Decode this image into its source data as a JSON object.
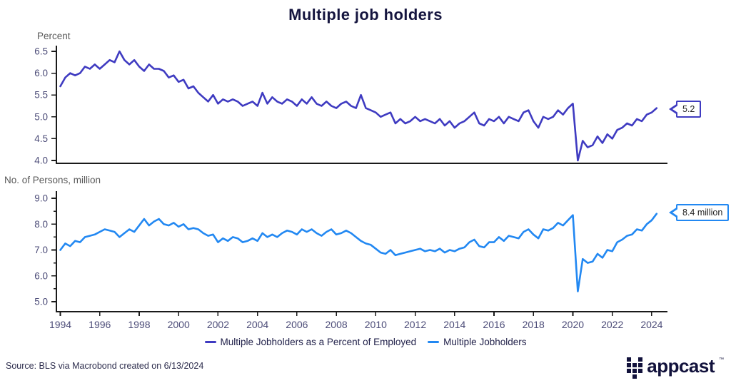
{
  "title": "Multiple job holders",
  "source": "Source: BLS via Macrobond created on 6/13/2024",
  "colors": {
    "percent_line": "#3f3bc1",
    "persons_line": "#2288f2",
    "axis": "#1a1a1a",
    "tick_text": "#4c4c78",
    "title_text": "#15153f",
    "unit_text": "#595959"
  },
  "legend": [
    {
      "label": "Multiple Jobholders as a Percent of Employed"
    },
    {
      "label": "Multiple Jobholders"
    }
  ],
  "logo": {
    "icon": "appcast-grid-icon",
    "text": "appcast",
    "tm": "™"
  },
  "chart_data": [
    {
      "type": "line",
      "name": "Multiple Jobholders as a Percent of Employed",
      "unit_label": "Percent",
      "ylim": [
        4.0,
        6.5
      ],
      "y_ticks": [
        {
          "v": 6.5,
          "label": "6.5"
        },
        {
          "v": 6.0,
          "label": "6.0"
        },
        {
          "v": 5.5,
          "label": "5.5"
        },
        {
          "v": 5.0,
          "label": "5.0"
        },
        {
          "v": 4.5,
          "label": "4.5"
        },
        {
          "v": 4.0,
          "label": "4.0"
        }
      ],
      "y_minor_ticks": [],
      "x_ticks": [],
      "xlim": [
        1994,
        2024.25
      ],
      "end_label": "5.2",
      "grid": false,
      "points": [
        [
          1994,
          5.7
        ],
        [
          1994.25,
          5.9
        ],
        [
          1994.5,
          6.0
        ],
        [
          1994.75,
          5.95
        ],
        [
          1995,
          6.0
        ],
        [
          1995.25,
          6.15
        ],
        [
          1995.5,
          6.1
        ],
        [
          1995.75,
          6.2
        ],
        [
          1996,
          6.1
        ],
        [
          1996.25,
          6.2
        ],
        [
          1996.5,
          6.3
        ],
        [
          1996.75,
          6.25
        ],
        [
          1997,
          6.5
        ],
        [
          1997.25,
          6.3
        ],
        [
          1997.5,
          6.2
        ],
        [
          1997.75,
          6.3
        ],
        [
          1998,
          6.15
        ],
        [
          1998.25,
          6.05
        ],
        [
          1998.5,
          6.2
        ],
        [
          1998.75,
          6.1
        ],
        [
          1999,
          6.1
        ],
        [
          1999.25,
          6.05
        ],
        [
          1999.5,
          5.9
        ],
        [
          1999.75,
          5.95
        ],
        [
          2000,
          5.8
        ],
        [
          2000.25,
          5.85
        ],
        [
          2000.5,
          5.65
        ],
        [
          2000.75,
          5.7
        ],
        [
          2001,
          5.55
        ],
        [
          2001.25,
          5.45
        ],
        [
          2001.5,
          5.35
        ],
        [
          2001.75,
          5.5
        ],
        [
          2002,
          5.3
        ],
        [
          2002.25,
          5.4
        ],
        [
          2002.5,
          5.35
        ],
        [
          2002.75,
          5.4
        ],
        [
          2003,
          5.35
        ],
        [
          2003.25,
          5.25
        ],
        [
          2003.5,
          5.3
        ],
        [
          2003.75,
          5.35
        ],
        [
          2004,
          5.25
        ],
        [
          2004.25,
          5.55
        ],
        [
          2004.5,
          5.3
        ],
        [
          2004.75,
          5.45
        ],
        [
          2005,
          5.35
        ],
        [
          2005.25,
          5.3
        ],
        [
          2005.5,
          5.4
        ],
        [
          2005.75,
          5.35
        ],
        [
          2006,
          5.25
        ],
        [
          2006.25,
          5.4
        ],
        [
          2006.5,
          5.3
        ],
        [
          2006.75,
          5.45
        ],
        [
          2007,
          5.3
        ],
        [
          2007.25,
          5.25
        ],
        [
          2007.5,
          5.35
        ],
        [
          2007.75,
          5.25
        ],
        [
          2008,
          5.2
        ],
        [
          2008.25,
          5.3
        ],
        [
          2008.5,
          5.35
        ],
        [
          2008.75,
          5.25
        ],
        [
          2009,
          5.2
        ],
        [
          2009.25,
          5.5
        ],
        [
          2009.5,
          5.2
        ],
        [
          2009.75,
          5.15
        ],
        [
          2010,
          5.1
        ],
        [
          2010.25,
          5.0
        ],
        [
          2010.5,
          5.05
        ],
        [
          2010.75,
          5.1
        ],
        [
          2011,
          4.85
        ],
        [
          2011.25,
          4.95
        ],
        [
          2011.5,
          4.85
        ],
        [
          2011.75,
          4.9
        ],
        [
          2012,
          5.0
        ],
        [
          2012.25,
          4.9
        ],
        [
          2012.5,
          4.95
        ],
        [
          2012.75,
          4.9
        ],
        [
          2013,
          4.85
        ],
        [
          2013.25,
          4.95
        ],
        [
          2013.5,
          4.8
        ],
        [
          2013.75,
          4.9
        ],
        [
          2014,
          4.75
        ],
        [
          2014.25,
          4.85
        ],
        [
          2014.5,
          4.9
        ],
        [
          2014.75,
          5.0
        ],
        [
          2015,
          5.1
        ],
        [
          2015.25,
          4.85
        ],
        [
          2015.5,
          4.8
        ],
        [
          2015.75,
          4.95
        ],
        [
          2016,
          4.9
        ],
        [
          2016.25,
          5.0
        ],
        [
          2016.5,
          4.85
        ],
        [
          2016.75,
          5.0
        ],
        [
          2017,
          4.95
        ],
        [
          2017.25,
          4.9
        ],
        [
          2017.5,
          5.1
        ],
        [
          2017.75,
          5.15
        ],
        [
          2018,
          4.9
        ],
        [
          2018.25,
          4.75
        ],
        [
          2018.5,
          5.0
        ],
        [
          2018.75,
          4.95
        ],
        [
          2019,
          5.0
        ],
        [
          2019.25,
          5.15
        ],
        [
          2019.5,
          5.05
        ],
        [
          2019.75,
          5.2
        ],
        [
          2020,
          5.3
        ],
        [
          2020.25,
          4.0
        ],
        [
          2020.5,
          4.45
        ],
        [
          2020.75,
          4.3
        ],
        [
          2021,
          4.35
        ],
        [
          2021.25,
          4.55
        ],
        [
          2021.5,
          4.4
        ],
        [
          2021.75,
          4.6
        ],
        [
          2022,
          4.5
        ],
        [
          2022.25,
          4.7
        ],
        [
          2022.5,
          4.75
        ],
        [
          2022.75,
          4.85
        ],
        [
          2023,
          4.8
        ],
        [
          2023.25,
          4.95
        ],
        [
          2023.5,
          4.9
        ],
        [
          2023.75,
          5.05
        ],
        [
          2024,
          5.1
        ],
        [
          2024.25,
          5.2
        ]
      ]
    },
    {
      "type": "line",
      "name": "Multiple Jobholders",
      "unit_label": "No. of Persons, million",
      "ylim": [
        5.0,
        9.0
      ],
      "y_ticks": [
        {
          "v": 9.0,
          "label": "9.0"
        },
        {
          "v": 8.0,
          "label": "8.0"
        },
        {
          "v": 7.0,
          "label": "7.0"
        },
        {
          "v": 6.0,
          "label": "6.0"
        },
        {
          "v": 5.0,
          "label": "5.0"
        }
      ],
      "y_minor_ticks": [
        8.5,
        7.5,
        6.5,
        5.5
      ],
      "x_ticks": [
        {
          "v": 1994,
          "label": "1994"
        },
        {
          "v": 1996,
          "label": "1996"
        },
        {
          "v": 1998,
          "label": "1998"
        },
        {
          "v": 2000,
          "label": "2000"
        },
        {
          "v": 2002,
          "label": "2002"
        },
        {
          "v": 2004,
          "label": "2004"
        },
        {
          "v": 2006,
          "label": "2006"
        },
        {
          "v": 2008,
          "label": "2008"
        },
        {
          "v": 2010,
          "label": "2010"
        },
        {
          "v": 2012,
          "label": "2012"
        },
        {
          "v": 2014,
          "label": "2014"
        },
        {
          "v": 2016,
          "label": "2016"
        },
        {
          "v": 2018,
          "label": "2018"
        },
        {
          "v": 2020,
          "label": "2020"
        },
        {
          "v": 2022,
          "label": "2022"
        },
        {
          "v": 2024,
          "label": "2024"
        }
      ],
      "xlim": [
        1994,
        2024.25
      ],
      "end_label": "8.4 million",
      "grid": false,
      "points": [
        [
          1994,
          7.0
        ],
        [
          1994.25,
          7.25
        ],
        [
          1994.5,
          7.15
        ],
        [
          1994.75,
          7.35
        ],
        [
          1995,
          7.3
        ],
        [
          1995.25,
          7.5
        ],
        [
          1995.5,
          7.55
        ],
        [
          1995.75,
          7.6
        ],
        [
          1996,
          7.7
        ],
        [
          1996.25,
          7.8
        ],
        [
          1996.5,
          7.75
        ],
        [
          1996.75,
          7.7
        ],
        [
          1997,
          7.5
        ],
        [
          1997.25,
          7.65
        ],
        [
          1997.5,
          7.8
        ],
        [
          1997.75,
          7.7
        ],
        [
          1998,
          7.95
        ],
        [
          1998.25,
          8.2
        ],
        [
          1998.5,
          7.95
        ],
        [
          1998.75,
          8.1
        ],
        [
          1999,
          8.2
        ],
        [
          1999.25,
          8.0
        ],
        [
          1999.5,
          7.95
        ],
        [
          1999.75,
          8.05
        ],
        [
          2000,
          7.9
        ],
        [
          2000.25,
          8.0
        ],
        [
          2000.5,
          7.8
        ],
        [
          2000.75,
          7.85
        ],
        [
          2001,
          7.8
        ],
        [
          2001.25,
          7.65
        ],
        [
          2001.5,
          7.55
        ],
        [
          2001.75,
          7.6
        ],
        [
          2002,
          7.3
        ],
        [
          2002.25,
          7.45
        ],
        [
          2002.5,
          7.35
        ],
        [
          2002.75,
          7.5
        ],
        [
          2003,
          7.45
        ],
        [
          2003.25,
          7.3
        ],
        [
          2003.5,
          7.35
        ],
        [
          2003.75,
          7.45
        ],
        [
          2004,
          7.35
        ],
        [
          2004.25,
          7.65
        ],
        [
          2004.5,
          7.5
        ],
        [
          2004.75,
          7.6
        ],
        [
          2005,
          7.5
        ],
        [
          2005.25,
          7.65
        ],
        [
          2005.5,
          7.75
        ],
        [
          2005.75,
          7.7
        ],
        [
          2006,
          7.6
        ],
        [
          2006.25,
          7.8
        ],
        [
          2006.5,
          7.7
        ],
        [
          2006.75,
          7.8
        ],
        [
          2007,
          7.65
        ],
        [
          2007.25,
          7.55
        ],
        [
          2007.5,
          7.7
        ],
        [
          2007.75,
          7.8
        ],
        [
          2008,
          7.6
        ],
        [
          2008.25,
          7.65
        ],
        [
          2008.5,
          7.75
        ],
        [
          2008.75,
          7.65
        ],
        [
          2009,
          7.5
        ],
        [
          2009.25,
          7.35
        ],
        [
          2009.5,
          7.25
        ],
        [
          2009.75,
          7.2
        ],
        [
          2010,
          7.05
        ],
        [
          2010.25,
          6.9
        ],
        [
          2010.5,
          6.85
        ],
        [
          2010.75,
          7.0
        ],
        [
          2011,
          6.8
        ],
        [
          2011.25,
          6.85
        ],
        [
          2011.5,
          6.9
        ],
        [
          2011.75,
          6.95
        ],
        [
          2012,
          7.0
        ],
        [
          2012.25,
          7.05
        ],
        [
          2012.5,
          6.95
        ],
        [
          2012.75,
          7.0
        ],
        [
          2013,
          6.95
        ],
        [
          2013.25,
          7.05
        ],
        [
          2013.5,
          6.9
        ],
        [
          2013.75,
          7.0
        ],
        [
          2014,
          6.95
        ],
        [
          2014.25,
          7.05
        ],
        [
          2014.5,
          7.1
        ],
        [
          2014.75,
          7.3
        ],
        [
          2015,
          7.4
        ],
        [
          2015.25,
          7.15
        ],
        [
          2015.5,
          7.1
        ],
        [
          2015.75,
          7.3
        ],
        [
          2016,
          7.3
        ],
        [
          2016.25,
          7.5
        ],
        [
          2016.5,
          7.35
        ],
        [
          2016.75,
          7.55
        ],
        [
          2017,
          7.5
        ],
        [
          2017.25,
          7.45
        ],
        [
          2017.5,
          7.7
        ],
        [
          2017.75,
          7.8
        ],
        [
          2018,
          7.6
        ],
        [
          2018.25,
          7.45
        ],
        [
          2018.5,
          7.8
        ],
        [
          2018.75,
          7.75
        ],
        [
          2019,
          7.85
        ],
        [
          2019.25,
          8.05
        ],
        [
          2019.5,
          7.95
        ],
        [
          2019.75,
          8.15
        ],
        [
          2020,
          8.35
        ],
        [
          2020.25,
          5.4
        ],
        [
          2020.5,
          6.65
        ],
        [
          2020.75,
          6.5
        ],
        [
          2021,
          6.55
        ],
        [
          2021.25,
          6.85
        ],
        [
          2021.5,
          6.7
        ],
        [
          2021.75,
          7.0
        ],
        [
          2022,
          6.95
        ],
        [
          2022.25,
          7.3
        ],
        [
          2022.5,
          7.4
        ],
        [
          2022.75,
          7.55
        ],
        [
          2023,
          7.6
        ],
        [
          2023.25,
          7.8
        ],
        [
          2023.5,
          7.75
        ],
        [
          2023.75,
          8.0
        ],
        [
          2024,
          8.15
        ],
        [
          2024.25,
          8.4
        ]
      ]
    }
  ]
}
